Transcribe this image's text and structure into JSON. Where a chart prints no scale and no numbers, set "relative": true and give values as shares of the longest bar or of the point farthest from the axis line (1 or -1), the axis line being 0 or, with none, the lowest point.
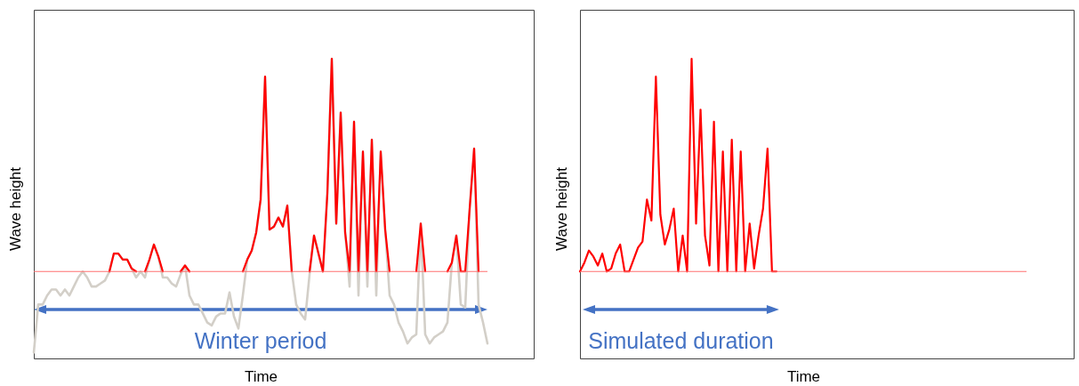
{
  "chart_data": [
    {
      "type": "line",
      "relative": true,
      "xlabel": "Time",
      "ylabel": "Wave height",
      "categories": [
        null,
        null,
        null,
        null,
        null,
        null,
        null,
        null,
        null,
        null,
        null,
        null,
        null,
        null,
        null,
        null,
        null,
        null,
        null,
        null,
        null,
        null,
        null,
        null,
        null,
        null,
        null,
        null,
        null,
        null,
        null,
        null,
        null,
        null,
        null,
        null,
        null,
        null,
        null,
        null,
        null,
        null,
        null,
        null,
        null,
        null,
        null,
        null,
        null,
        null,
        null,
        null,
        null,
        null,
        null,
        null,
        null,
        null,
        null,
        null,
        null,
        null,
        null,
        null,
        null,
        null,
        null,
        null,
        null,
        null,
        null,
        null,
        null,
        null,
        null,
        null,
        null,
        null,
        null,
        null,
        null,
        null,
        null,
        null,
        null,
        null,
        null,
        null,
        null,
        null,
        null,
        null,
        null,
        null,
        null,
        null,
        null,
        null,
        null,
        null,
        null,
        null,
        null
      ],
      "series": [
        {
          "color": "#d3cfc8",
          "values": [
            0.02,
            0.18,
            0.18,
            0.21,
            0.23,
            0.23,
            0.21,
            0.23,
            0.21,
            0.24,
            0.27,
            0.29,
            0.27,
            0.24,
            0.24,
            0.25,
            0.26,
            0.29,
            0.35,
            0.35,
            0.33,
            0.33,
            0.3,
            0.27,
            0.29,
            0.27,
            0.33,
            0.38,
            0.34,
            0.27,
            0.27,
            0.25,
            0.24,
            0.28,
            0.31,
            0.21,
            0.18,
            0.18,
            0.15,
            0.12,
            0.11,
            0.14,
            0.15,
            0.15,
            0.22,
            0.14,
            0.1,
            0.21,
            0.33,
            0.36,
            0.42,
            0.53,
            0.94,
            0.43,
            0.44,
            0.47,
            0.44,
            0.51,
            0.29,
            0.18,
            0.15,
            0.13,
            0.28,
            0.41,
            0.35,
            0.29,
            0.55,
            1.0,
            0.45,
            0.82,
            0.42,
            0.24,
            0.79,
            0.21,
            0.69,
            0.24,
            0.73,
            0.21,
            0.69,
            0.43,
            0.21,
            0.18,
            0.12,
            0.09,
            0.05,
            0.07,
            0.08,
            0.45,
            0.08,
            0.05,
            0.07,
            0.08,
            0.09,
            0.12,
            0.32,
            0.41,
            0.18,
            0.17,
            0.5,
            0.7,
            0.18,
            0.12,
            0.05
          ]
        },
        {
          "color": "#ff0000",
          "values": [
            null,
            null,
            null,
            null,
            null,
            null,
            null,
            null,
            null,
            null,
            null,
            null,
            null,
            null,
            null,
            null,
            null,
            0.29,
            0.35,
            0.35,
            0.33,
            0.33,
            0.3,
            0.29,
            null,
            0.29,
            0.33,
            0.38,
            0.34,
            0.29,
            null,
            null,
            null,
            0.29,
            0.31,
            0.29,
            null,
            null,
            null,
            null,
            null,
            null,
            null,
            null,
            null,
            null,
            null,
            0.29,
            0.33,
            0.36,
            0.42,
            0.53,
            0.94,
            0.43,
            0.44,
            0.47,
            0.44,
            0.51,
            0.29,
            null,
            null,
            null,
            0.29,
            0.41,
            0.35,
            0.29,
            0.55,
            1.0,
            0.45,
            0.82,
            0.42,
            0.29,
            0.79,
            0.29,
            0.69,
            0.29,
            0.73,
            0.29,
            0.69,
            0.43,
            0.29,
            null,
            null,
            null,
            null,
            null,
            0.29,
            0.45,
            0.29,
            null,
            null,
            null,
            null,
            0.29,
            0.32,
            0.41,
            0.29,
            0.29,
            0.5,
            0.7,
            0.29,
            null,
            null
          ]
        }
      ],
      "ref_lines": [
        {
          "axis": "y",
          "value": 0.29,
          "color": "#ff7070"
        }
      ],
      "annotations": [
        "Winter period"
      ]
    },
    {
      "type": "line",
      "relative": true,
      "xlabel": "Time",
      "ylabel": "Wave height",
      "categories": [
        null,
        null,
        null,
        null,
        null,
        null,
        null,
        null,
        null,
        null,
        null,
        null,
        null,
        null,
        null,
        null,
        null,
        null,
        null,
        null,
        null,
        null,
        null,
        null,
        null,
        null,
        null,
        null,
        null,
        null,
        null,
        null,
        null,
        null,
        null,
        null,
        null,
        null,
        null,
        null,
        null,
        null,
        null,
        null,
        null,
        null,
        null,
        null,
        null,
        null,
        null,
        null,
        null,
        null,
        null,
        null,
        null,
        null,
        null,
        null,
        null,
        null,
        null,
        null,
        null,
        null,
        null,
        null,
        null,
        null,
        null,
        null,
        null,
        null,
        null,
        null,
        null,
        null,
        null,
        null,
        null,
        null,
        null,
        null,
        null,
        null,
        null,
        null,
        null,
        null,
        null,
        null,
        null,
        null,
        null,
        null,
        null,
        null,
        null,
        null,
        null
      ],
      "series": [
        {
          "color": "#ff0000",
          "values": [
            0.29,
            0.32,
            0.36,
            0.34,
            0.31,
            0.35,
            0.29,
            0.3,
            0.35,
            0.38,
            0.29,
            0.29,
            0.33,
            0.37,
            0.39,
            0.53,
            0.46,
            0.94,
            0.48,
            0.38,
            0.43,
            0.5,
            0.29,
            0.41,
            0.29,
            1.0,
            0.45,
            0.83,
            0.41,
            0.31,
            0.79,
            0.29,
            0.69,
            0.29,
            0.73,
            0.29,
            0.69,
            0.29,
            0.45,
            0.3,
            0.41,
            0.5,
            0.7,
            0.29,
            0.29,
            null,
            null,
            null,
            null,
            null,
            null,
            null,
            null,
            null,
            null,
            null,
            null,
            null,
            null,
            null,
            null,
            null,
            null,
            null,
            null,
            null,
            null,
            null,
            null,
            null,
            null,
            null,
            null,
            null,
            null,
            null,
            null,
            null,
            null,
            null,
            null,
            null,
            null,
            null,
            null,
            null,
            null,
            null,
            null,
            null,
            null,
            null,
            null,
            null,
            null,
            null,
            null,
            null,
            null,
            null,
            null
          ]
        }
      ],
      "ref_lines": [
        {
          "axis": "y",
          "value": 0.29,
          "color": "#ff7070"
        }
      ],
      "annotations": [
        "Simulated duration"
      ]
    }
  ]
}
